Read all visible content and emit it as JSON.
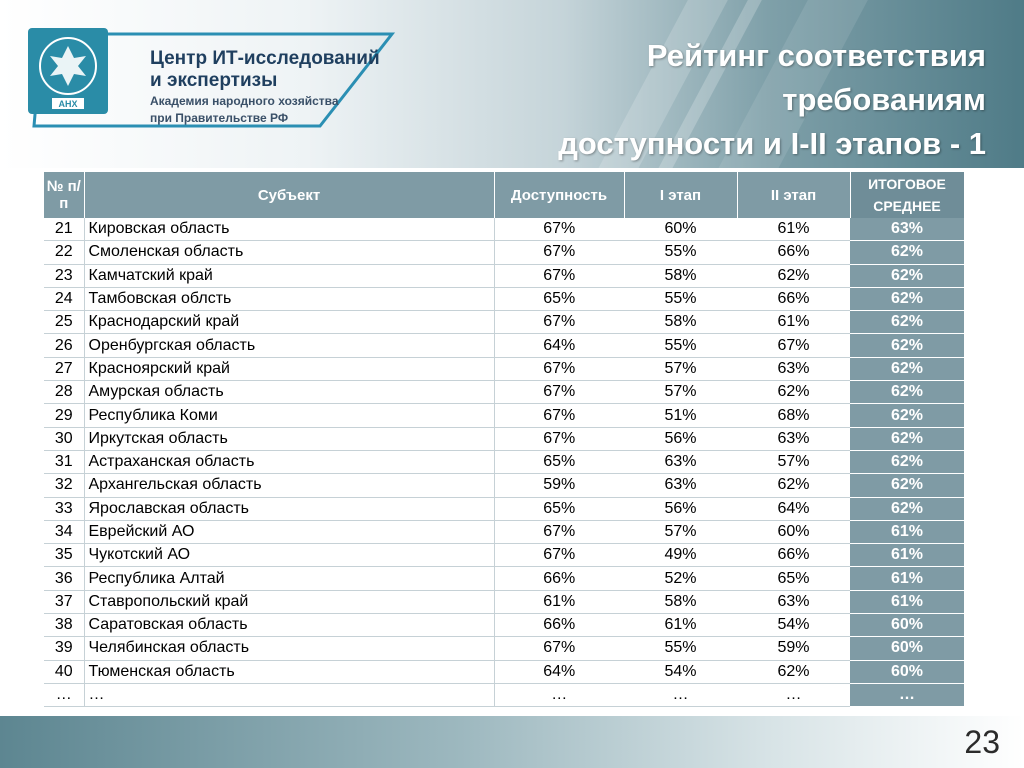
{
  "logo": {
    "line1": "Центр ИТ-исследований",
    "line2": "и экспертизы",
    "line3": "Академия народного хозяйства",
    "line4": "при Правительстве РФ",
    "emblem_text": "АНХ"
  },
  "title": {
    "line1": "Рейтинг соответствия",
    "line2": "требованиям",
    "line3": "доступности и I-II этапов - 1"
  },
  "table": {
    "headers": {
      "num": "№ п/п",
      "subject": "Субъект",
      "access": "Доступность",
      "stage1": "I этап",
      "stage2": "II этап",
      "final": "ИТОГОВОЕ СРЕДНЕЕ"
    },
    "rows": [
      {
        "n": "21",
        "name": "Кировская область",
        "access": "67%",
        "s1": "60%",
        "s2": "61%",
        "final": "63%"
      },
      {
        "n": "22",
        "name": "Смоленская область",
        "access": "67%",
        "s1": "55%",
        "s2": "66%",
        "final": "62%"
      },
      {
        "n": "23",
        "name": "Камчатский край",
        "access": "67%",
        "s1": "58%",
        "s2": "62%",
        "final": "62%"
      },
      {
        "n": "24",
        "name": "Тамбовская облсть",
        "access": "65%",
        "s1": "55%",
        "s2": "66%",
        "final": "62%"
      },
      {
        "n": "25",
        "name": "Краснодарский край",
        "access": "67%",
        "s1": "58%",
        "s2": "61%",
        "final": "62%"
      },
      {
        "n": "26",
        "name": "Оренбургская область",
        "access": "64%",
        "s1": "55%",
        "s2": "67%",
        "final": "62%"
      },
      {
        "n": "27",
        "name": "Красноярский край",
        "access": "67%",
        "s1": "57%",
        "s2": "63%",
        "final": "62%"
      },
      {
        "n": "28",
        "name": "Амурская область",
        "access": "67%",
        "s1": "57%",
        "s2": "62%",
        "final": "62%"
      },
      {
        "n": "29",
        "name": "Республика Коми",
        "access": "67%",
        "s1": "51%",
        "s2": "68%",
        "final": "62%"
      },
      {
        "n": "30",
        "name": "Иркутская область",
        "access": "67%",
        "s1": "56%",
        "s2": "63%",
        "final": "62%"
      },
      {
        "n": "31",
        "name": "Астраханская область",
        "access": "65%",
        "s1": "63%",
        "s2": "57%",
        "final": "62%"
      },
      {
        "n": "32",
        "name": "Архангельская область",
        "access": "59%",
        "s1": "63%",
        "s2": "62%",
        "final": "62%"
      },
      {
        "n": "33",
        "name": "Ярославская область",
        "access": "65%",
        "s1": "56%",
        "s2": "64%",
        "final": "62%"
      },
      {
        "n": "34",
        "name": "Еврейский АО",
        "access": "67%",
        "s1": "57%",
        "s2": "60%",
        "final": "61%"
      },
      {
        "n": "35",
        "name": "Чукотский АО",
        "access": "67%",
        "s1": "49%",
        "s2": "66%",
        "final": "61%"
      },
      {
        "n": "36",
        "name": "Республика Алтай",
        "access": "66%",
        "s1": "52%",
        "s2": "65%",
        "final": "61%"
      },
      {
        "n": "37",
        "name": "Ставропольский край",
        "access": "61%",
        "s1": "58%",
        "s2": "63%",
        "final": "61%"
      },
      {
        "n": "38",
        "name": "Саратовская область",
        "access": "66%",
        "s1": "61%",
        "s2": "54%",
        "final": "60%"
      },
      {
        "n": "39",
        "name": "Челябинская область",
        "access": "67%",
        "s1": "55%",
        "s2": "59%",
        "final": "60%"
      },
      {
        "n": "40",
        "name": "Тюменская область",
        "access": "64%",
        "s1": "54%",
        "s2": "62%",
        "final": "60%"
      },
      {
        "n": "…",
        "name": "…",
        "access": "…",
        "s1": "…",
        "s2": "…",
        "final": "…"
      }
    ]
  },
  "footer": {
    "page_number": "23"
  },
  "colors": {
    "header_accent": "#7f9ba5",
    "title_text": "#ffffff",
    "logo_blue": "#1f3f5f"
  }
}
